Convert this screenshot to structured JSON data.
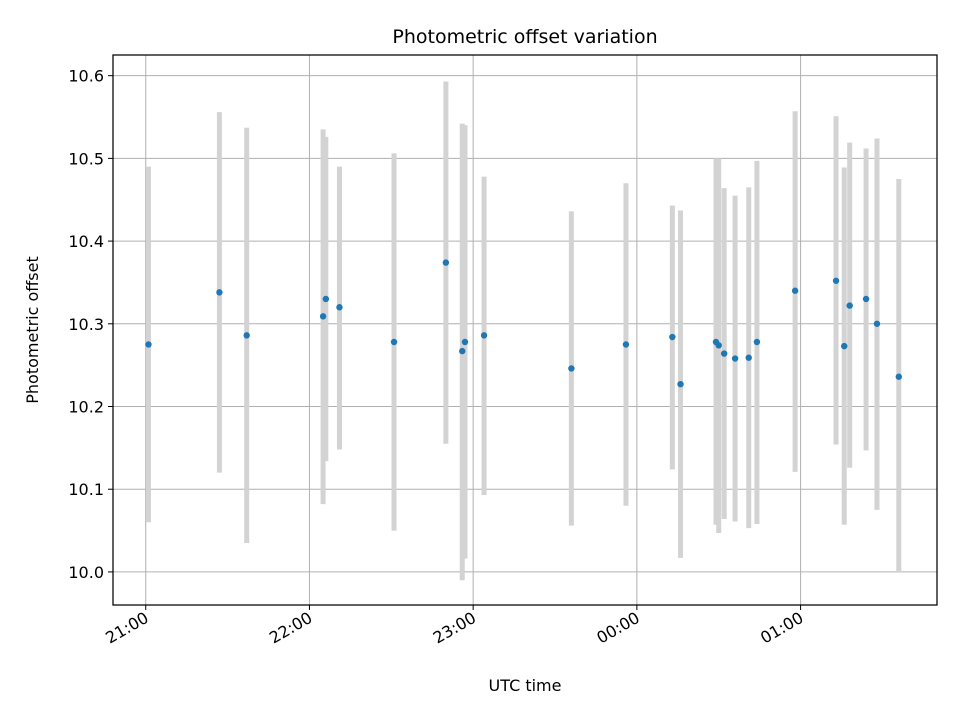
{
  "chart_data": {
    "type": "scatter",
    "title": "Photometric offset variation",
    "xlabel": "UTC time",
    "ylabel": "Photometric offset",
    "x_unit": "UTC time (HH:MM), dates spanning midnight",
    "xlim": [
      "20:48",
      "01:50"
    ],
    "ylim": [
      9.96,
      10.625
    ],
    "grid": true,
    "xticks": [
      "21:00",
      "22:00",
      "23:00",
      "00:00",
      "01:00"
    ],
    "yticks": [
      "10.0",
      "10.1",
      "10.2",
      "10.3",
      "10.4",
      "10.5",
      "10.6"
    ],
    "colors": {
      "points": "#1f77b4",
      "errorbars": "#d3d3d3"
    },
    "points": [
      {
        "x": "21:01",
        "y": 10.275,
        "err_low": 10.06,
        "err_high": 10.49
      },
      {
        "x": "21:27",
        "y": 10.338,
        "err_low": 10.12,
        "err_high": 10.556
      },
      {
        "x": "21:37",
        "y": 10.286,
        "err_low": 10.035,
        "err_high": 10.537
      },
      {
        "x": "22:05",
        "y": 10.309,
        "err_low": 10.082,
        "err_high": 10.535
      },
      {
        "x": "22:06",
        "y": 10.33,
        "err_low": 10.134,
        "err_high": 10.526
      },
      {
        "x": "22:11",
        "y": 10.32,
        "err_low": 10.148,
        "err_high": 10.49
      },
      {
        "x": "22:31",
        "y": 10.278,
        "err_low": 10.05,
        "err_high": 10.506
      },
      {
        "x": "22:50",
        "y": 10.374,
        "err_low": 10.155,
        "err_high": 10.593
      },
      {
        "x": "22:56",
        "y": 10.267,
        "err_low": 9.99,
        "err_high": 10.542
      },
      {
        "x": "22:57",
        "y": 10.278,
        "err_low": 10.016,
        "err_high": 10.54
      },
      {
        "x": "23:04",
        "y": 10.286,
        "err_low": 10.093,
        "err_high": 10.478
      },
      {
        "x": "23:36",
        "y": 10.246,
        "err_low": 10.056,
        "err_high": 10.436
      },
      {
        "x": "23:56",
        "y": 10.275,
        "err_low": 10.08,
        "err_high": 10.47
      },
      {
        "x": "00:13",
        "y": 10.284,
        "err_low": 10.124,
        "err_high": 10.443
      },
      {
        "x": "00:16",
        "y": 10.227,
        "err_low": 10.017,
        "err_high": 10.437
      },
      {
        "x": "00:29",
        "y": 10.278,
        "err_low": 10.057,
        "err_high": 10.5
      },
      {
        "x": "00:30",
        "y": 10.274,
        "err_low": 10.047,
        "err_high": 10.5
      },
      {
        "x": "00:32",
        "y": 10.264,
        "err_low": 10.064,
        "err_high": 10.464
      },
      {
        "x": "00:36",
        "y": 10.258,
        "err_low": 10.061,
        "err_high": 10.455
      },
      {
        "x": "00:41",
        "y": 10.259,
        "err_low": 10.053,
        "err_high": 10.465
      },
      {
        "x": "00:44",
        "y": 10.278,
        "err_low": 10.058,
        "err_high": 10.497
      },
      {
        "x": "00:58",
        "y": 10.34,
        "err_low": 10.121,
        "err_high": 10.557
      },
      {
        "x": "01:13",
        "y": 10.352,
        "err_low": 10.154,
        "err_high": 10.551
      },
      {
        "x": "01:16",
        "y": 10.273,
        "err_low": 10.057,
        "err_high": 10.489
      },
      {
        "x": "01:18",
        "y": 10.322,
        "err_low": 10.126,
        "err_high": 10.519
      },
      {
        "x": "01:24",
        "y": 10.33,
        "err_low": 10.147,
        "err_high": 10.512
      },
      {
        "x": "01:28",
        "y": 10.3,
        "err_low": 10.075,
        "err_high": 10.524
      },
      {
        "x": "01:36",
        "y": 10.236,
        "err_low": 9.999,
        "err_high": 10.475
      }
    ]
  }
}
